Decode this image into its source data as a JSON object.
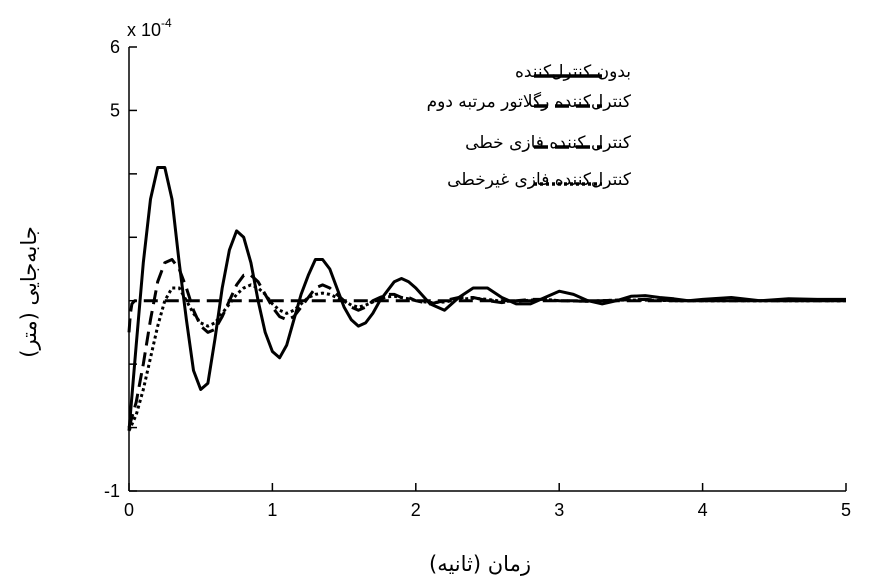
{
  "chart_data": {
    "type": "line",
    "title": "",
    "xlabel": "زمان (ثانیه)",
    "ylabel": "جابه‌جایی (متر)",
    "xlim": [
      0,
      5
    ],
    "ylim": [
      -1,
      6
    ],
    "y_multiplier": {
      "base": "x 10",
      "exponent": "-4"
    },
    "x_ticks": [
      "0",
      "1",
      "2",
      "3",
      "4",
      "5"
    ],
    "x_tick_values": [
      0,
      1,
      2,
      3,
      4,
      5
    ],
    "y_ticks": [
      "-1",
      "5",
      "6"
    ],
    "y_tick_values": [
      -1,
      5,
      6
    ],
    "grid": false,
    "legend_position": "top-right",
    "series": [
      {
        "name": "بدون کنترل‌کننده",
        "style": "solid",
        "color": "#000000",
        "x": [
          0,
          0.05,
          0.1,
          0.15,
          0.2,
          0.25,
          0.3,
          0.35,
          0.4,
          0.45,
          0.5,
          0.55,
          0.6,
          0.65,
          0.7,
          0.75,
          0.8,
          0.85,
          0.9,
          0.95,
          1.0,
          1.05,
          1.1,
          1.15,
          1.2,
          1.25,
          1.3,
          1.35,
          1.4,
          1.45,
          1.5,
          1.55,
          1.6,
          1.65,
          1.7,
          1.75,
          1.8,
          1.85,
          1.9,
          1.95,
          2.0,
          2.1,
          2.2,
          2.3,
          2.4,
          2.5,
          2.6,
          2.7,
          2.8,
          2.9,
          3.0,
          3.1,
          3.2,
          3.3,
          3.4,
          3.5,
          3.6,
          3.7,
          3.8,
          3.9,
          4.0,
          4.2,
          4.4,
          4.6,
          4.8,
          5.0
        ],
        "values": [
          -0.05,
          1.3,
          2.6,
          3.6,
          4.1,
          4.1,
          3.6,
          2.6,
          1.7,
          0.9,
          0.6,
          0.7,
          1.4,
          2.2,
          2.8,
          3.1,
          3.0,
          2.6,
          2.0,
          1.5,
          1.2,
          1.1,
          1.3,
          1.7,
          2.1,
          2.4,
          2.65,
          2.65,
          2.5,
          2.2,
          1.9,
          1.7,
          1.6,
          1.65,
          1.8,
          2.0,
          2.15,
          2.3,
          2.35,
          2.3,
          2.2,
          1.95,
          1.85,
          2.05,
          2.2,
          2.2,
          2.05,
          1.95,
          1.95,
          2.05,
          2.15,
          2.1,
          2.0,
          1.95,
          2.0,
          2.07,
          2.08,
          2.05,
          2.03,
          2.0,
          2.02,
          2.05,
          2.0,
          2.03,
          2.02,
          2.02
        ]
      },
      {
        "name": "کنترل‌کننده رگلاتور مرتبه دوم",
        "style": "dashed",
        "color": "#000000",
        "x": [
          0,
          0.01,
          0.02,
          0.04,
          1,
          2,
          3,
          4,
          5
        ],
        "values": [
          1.5,
          1.8,
          1.95,
          2.0,
          2.0,
          2.0,
          2.0,
          2.0,
          2.0
        ]
      },
      {
        "name": "کنترل کننده فازی خطی",
        "style": "dashed",
        "color": "#000000",
        "x": [
          0,
          0.05,
          0.1,
          0.15,
          0.2,
          0.25,
          0.3,
          0.35,
          0.4,
          0.45,
          0.5,
          0.55,
          0.6,
          0.65,
          0.7,
          0.75,
          0.8,
          0.85,
          0.9,
          0.95,
          1.0,
          1.05,
          1.1,
          1.15,
          1.2,
          1.25,
          1.3,
          1.35,
          1.4,
          1.45,
          1.5,
          1.55,
          1.6,
          1.65,
          1.7,
          1.75,
          1.8,
          1.85,
          1.9,
          1.95,
          2.0,
          2.1,
          2.2,
          2.3,
          2.4,
          2.5,
          2.6,
          2.7,
          2.8,
          2.9,
          3.0,
          3.2,
          3.4,
          3.6,
          3.8,
          4.0,
          4.5,
          5.0
        ],
        "values": [
          0,
          0.4,
          1.0,
          1.7,
          2.3,
          2.6,
          2.65,
          2.5,
          2.2,
          1.85,
          1.6,
          1.5,
          1.55,
          1.75,
          2.0,
          2.25,
          2.4,
          2.4,
          2.3,
          2.1,
          1.9,
          1.75,
          1.7,
          1.75,
          1.9,
          2.05,
          2.2,
          2.25,
          2.2,
          2.1,
          2.0,
          1.9,
          1.85,
          1.9,
          2.0,
          2.05,
          2.1,
          2.1,
          2.05,
          2.05,
          2.0,
          1.95,
          2.0,
          2.05,
          2.05,
          2.0,
          1.97,
          2.0,
          2.02,
          2.02,
          2.0,
          1.99,
          2.01,
          2.02,
          2.0,
          2.0,
          2.0,
          2.0
        ]
      },
      {
        "name": "کنترل‌کننده فازی غیرخطی",
        "style": "dotted",
        "color": "#000000",
        "x": [
          0,
          0.05,
          0.1,
          0.15,
          0.2,
          0.25,
          0.3,
          0.35,
          0.4,
          0.45,
          0.5,
          0.55,
          0.6,
          0.65,
          0.7,
          0.75,
          0.8,
          0.85,
          0.9,
          0.95,
          1.0,
          1.05,
          1.1,
          1.15,
          1.2,
          1.25,
          1.3,
          1.35,
          1.4,
          1.45,
          1.5,
          1.55,
          1.6,
          1.65,
          1.7,
          1.75,
          1.8,
          1.85,
          1.9,
          1.95,
          2.0,
          2.1,
          2.2,
          2.3,
          2.4,
          2.5,
          2.6,
          2.7,
          2.8,
          2.9,
          3.0,
          3.2,
          3.4,
          3.6,
          3.8,
          4.0,
          4.5,
          5.0
        ],
        "values": [
          -0.05,
          0.2,
          0.6,
          1.1,
          1.6,
          2.0,
          2.2,
          2.2,
          2.0,
          1.8,
          1.65,
          1.6,
          1.65,
          1.8,
          1.95,
          2.1,
          2.2,
          2.25,
          2.2,
          2.1,
          1.95,
          1.85,
          1.8,
          1.85,
          1.95,
          2.05,
          2.1,
          2.12,
          2.1,
          2.05,
          2.0,
          1.93,
          1.9,
          1.93,
          1.98,
          2.03,
          2.06,
          2.07,
          2.05,
          2.03,
          2.0,
          1.97,
          1.98,
          2.02,
          2.04,
          2.02,
          1.99,
          1.99,
          2.01,
          2.02,
          2.0,
          1.99,
          2.01,
          2.01,
          2.0,
          2.0,
          2.0,
          2.0
        ]
      }
    ]
  }
}
